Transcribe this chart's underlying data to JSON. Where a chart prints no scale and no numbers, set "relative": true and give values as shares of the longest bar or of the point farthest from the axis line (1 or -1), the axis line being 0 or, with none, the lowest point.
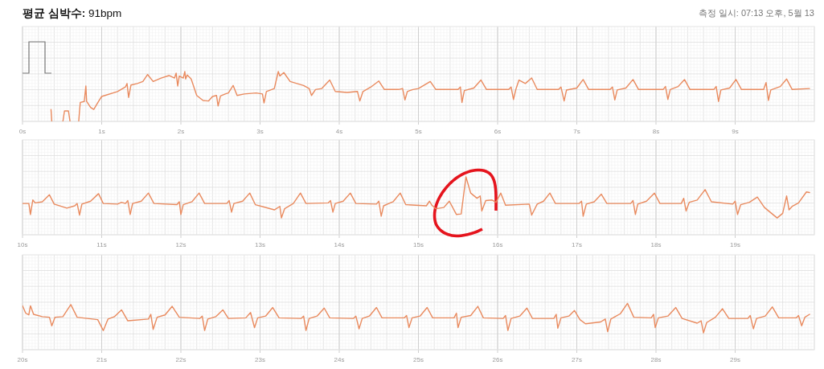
{
  "chart_data": [
    {
      "type": "line",
      "title": "**평균 심박수:** 91bpm",
      "subtitle": "측정 일시: 07:13 오후, 5월 13",
      "relative": true,
      "grid": true,
      "color": "#e98a5e",
      "xlim": [
        0,
        10
      ],
      "xticks": [
        {
          "value": 0,
          "label": "0s"
        },
        {
          "value": 1,
          "label": "1s"
        },
        {
          "value": 2,
          "label": "2s"
        },
        {
          "value": 3,
          "label": "3s"
        },
        {
          "value": 4,
          "label": "4s"
        },
        {
          "value": 5,
          "label": "5s"
        },
        {
          "value": 6,
          "label": "6s"
        },
        {
          "value": 7,
          "label": "7s"
        },
        {
          "value": 8,
          "label": "8s"
        },
        {
          "value": 9,
          "label": "9s"
        }
      ],
      "x": [
        0.36,
        0.37,
        0.44,
        0.51,
        0.53,
        0.58,
        0.6,
        0.65,
        0.71,
        0.72,
        0.73,
        0.78,
        0.8,
        0.81,
        0.86,
        0.9,
        0.96,
        1.0,
        1.2,
        1.3,
        1.32,
        1.34,
        1.37,
        1.45,
        1.52,
        1.58,
        1.65,
        1.75,
        1.85,
        1.92,
        1.94,
        1.96,
        1.98,
        2.03,
        2.05,
        2.06,
        2.08,
        2.13,
        2.2,
        2.28,
        2.35,
        2.4,
        2.45,
        2.47,
        2.5,
        2.56,
        2.6,
        2.66,
        2.71,
        2.8,
        2.95,
        3.03,
        3.05,
        3.08,
        3.18,
        3.23,
        3.25,
        3.3,
        3.38,
        3.55,
        3.62,
        3.65,
        3.7,
        3.78,
        3.88,
        3.95,
        4.1,
        4.23,
        4.26,
        4.3,
        4.4,
        4.5,
        4.57,
        4.75,
        4.8,
        4.83,
        4.86,
        4.93,
        5.0,
        5.15,
        5.22,
        5.5,
        5.53,
        5.55,
        5.58,
        5.7,
        5.79,
        5.86,
        6.14,
        6.17,
        6.2,
        6.23,
        6.27,
        6.35,
        6.43,
        6.5,
        6.77,
        6.8,
        6.84,
        6.87,
        7.0,
        7.08,
        7.15,
        7.42,
        7.45,
        7.48,
        7.51,
        7.62,
        7.71,
        7.78,
        8.09,
        8.12,
        8.15,
        8.18,
        8.28,
        8.36,
        8.43,
        8.73,
        8.76,
        8.79,
        8.82,
        8.93,
        9.01,
        9.08,
        9.36,
        9.39,
        9.42,
        9.45,
        9.57,
        9.65,
        9.72,
        9.94
      ],
      "values": [
        0.24,
        0,
        null,
        0,
        0.21,
        0.21,
        0,
        null,
        0,
        0.21,
        0.38,
        0.4,
        0.71,
        0.4,
        0.28,
        0.24,
        0.4,
        0.5,
        0.6,
        0.69,
        0.76,
        0.48,
        0.73,
        0.76,
        0.8,
        0.94,
        0.8,
        0.87,
        0.92,
        0.87,
        0.97,
        0.71,
        0.91,
        0.87,
        1,
        0.85,
        0.93,
        0.85,
        0.52,
        0.42,
        0.41,
        0.5,
        0.52,
        0.31,
        0.51,
        0.55,
        0.57,
        0.72,
        0.52,
        0.55,
        0.57,
        0.55,
        0.37,
        0.6,
        0.66,
        1,
        0.91,
        0.98,
        0.8,
        0.72,
        0.66,
        0.52,
        0.64,
        0.66,
        0.83,
        0.6,
        0.58,
        0.6,
        0.41,
        0.6,
        0.69,
        0.81,
        0.64,
        0.64,
        0.66,
        0.43,
        0.6,
        0.64,
        0.66,
        0.8,
        0.64,
        0.64,
        0.69,
        0.38,
        0.62,
        0.67,
        0.83,
        0.64,
        0.64,
        0.69,
        0.44,
        0.64,
        0.83,
        0.76,
        0.87,
        0.64,
        0.64,
        0.69,
        0.41,
        0.63,
        0.67,
        0.84,
        0.64,
        0.64,
        0.69,
        0.43,
        0.63,
        0.67,
        0.84,
        0.64,
        0.64,
        0.7,
        0.44,
        0.64,
        0.7,
        0.84,
        0.64,
        0.64,
        0.7,
        0.4,
        0.63,
        0.67,
        0.84,
        0.64,
        0.64,
        0.78,
        0.42,
        0.63,
        0.7,
        0.85,
        0.64,
        0.66
      ]
    },
    {
      "type": "line",
      "relative": true,
      "grid": true,
      "color": "#e98a5e",
      "xlim": [
        10,
        20
      ],
      "xticks": [
        {
          "value": 10,
          "label": "10s"
        },
        {
          "value": 11,
          "label": "11s"
        },
        {
          "value": 12,
          "label": "12s"
        },
        {
          "value": 13,
          "label": "13s"
        },
        {
          "value": 14,
          "label": "14s"
        },
        {
          "value": 15,
          "label": "15s"
        },
        {
          "value": 16,
          "label": "16s"
        },
        {
          "value": 17,
          "label": "17s"
        },
        {
          "value": 18,
          "label": "18s"
        },
        {
          "value": 19,
          "label": "19s"
        }
      ],
      "x": [
        10.0,
        10.08,
        10.1,
        10.13,
        10.16,
        10.25,
        10.34,
        10.4,
        10.56,
        10.66,
        10.69,
        10.72,
        10.75,
        10.86,
        10.96,
        11.02,
        11.2,
        11.25,
        11.3,
        11.33,
        11.36,
        11.39,
        11.5,
        11.59,
        11.66,
        11.95,
        11.98,
        12.0,
        12.03,
        12.14,
        12.23,
        12.3,
        12.58,
        12.61,
        12.64,
        12.67,
        12.78,
        12.87,
        12.94,
        13.18,
        13.25,
        13.27,
        13.31,
        13.42,
        13.51,
        13.58,
        13.86,
        13.89,
        13.92,
        13.95,
        14.05,
        14.14,
        14.21,
        14.47,
        14.5,
        14.53,
        14.56,
        14.68,
        14.77,
        14.84,
        15.1,
        15.14,
        15.17,
        15.22,
        15.32,
        15.39,
        15.48,
        15.54,
        15.6,
        15.66,
        15.74,
        15.78,
        15.8,
        15.85,
        15.93,
        15.98,
        16.04,
        16.1,
        16.4,
        16.43,
        16.5,
        16.58,
        16.66,
        16.73,
        17.03,
        17.06,
        17.08,
        17.12,
        17.22,
        17.31,
        17.38,
        17.68,
        17.71,
        17.74,
        17.77,
        17.88,
        17.98,
        18.05,
        18.32,
        18.35,
        18.38,
        18.42,
        18.52,
        18.62,
        18.7,
        18.97,
        19.0,
        19.03,
        19.07,
        19.18,
        19.28,
        19.37,
        19.53,
        19.6,
        19.65,
        19.68,
        19.72,
        19.8,
        19.9,
        19.94
      ],
      "values": [
        0.54,
        0.54,
        0.35,
        0.6,
        0.55,
        0.57,
        0.69,
        0.53,
        0.46,
        0.5,
        0.54,
        0.34,
        0.53,
        0.58,
        0.71,
        0.54,
        0.53,
        0.56,
        0.54,
        0.59,
        0.35,
        0.54,
        0.58,
        0.72,
        0.54,
        0.52,
        0.57,
        0.35,
        0.52,
        0.57,
        0.72,
        0.54,
        0.54,
        0.59,
        0.39,
        0.54,
        0.58,
        0.72,
        0.52,
        0.43,
        0.49,
        0.29,
        0.45,
        0.54,
        0.72,
        0.54,
        0.55,
        0.59,
        0.39,
        0.54,
        0.58,
        0.72,
        0.54,
        0.53,
        0.58,
        0.32,
        0.5,
        0.57,
        0.72,
        0.52,
        0.5,
        0.58,
        0.51,
        0.45,
        0.47,
        0.58,
        0.35,
        0.36,
        1.0,
        0.72,
        0.63,
        0.67,
        0.41,
        0.59,
        0.6,
        0.56,
        0.72,
        0.51,
        0.53,
        0.34,
        0.53,
        0.58,
        0.72,
        0.54,
        0.54,
        0.58,
        0.32,
        0.53,
        0.57,
        0.7,
        0.54,
        0.54,
        0.59,
        0.35,
        0.53,
        0.58,
        0.72,
        0.54,
        0.54,
        0.63,
        0.41,
        0.56,
        0.6,
        0.78,
        0.57,
        0.53,
        0.58,
        0.35,
        0.52,
        0.56,
        0.65,
        0.47,
        0.29,
        0.37,
        0.67,
        0.43,
        0.49,
        0.55,
        0.74,
        0.73
      ]
    },
    {
      "type": "line",
      "relative": true,
      "grid": true,
      "color": "#e98a5e",
      "xlim": [
        20,
        30
      ],
      "xticks": [
        {
          "value": 20,
          "label": "20s"
        },
        {
          "value": 21,
          "label": "21s"
        },
        {
          "value": 22,
          "label": "22s"
        },
        {
          "value": 23,
          "label": "23s"
        },
        {
          "value": 24,
          "label": "24s"
        },
        {
          "value": 25,
          "label": "25s"
        },
        {
          "value": 26,
          "label": "26s"
        },
        {
          "value": 27,
          "label": "27s"
        },
        {
          "value": 28,
          "label": "28s"
        },
        {
          "value": 29,
          "label": "29s"
        }
      ],
      "x": [
        20.0,
        20.04,
        20.08,
        20.1,
        20.14,
        20.25,
        20.34,
        20.37,
        20.41,
        20.51,
        20.61,
        20.69,
        20.95,
        21.02,
        21.08,
        21.16,
        21.25,
        21.33,
        21.59,
        21.62,
        21.65,
        21.7,
        21.8,
        21.89,
        21.98,
        22.24,
        22.27,
        22.3,
        22.34,
        22.44,
        22.53,
        22.6,
        22.82,
        22.88,
        22.93,
        22.97,
        23.07,
        23.16,
        23.24,
        23.52,
        23.55,
        23.58,
        23.62,
        23.72,
        23.81,
        23.88,
        24.18,
        24.21,
        24.25,
        24.29,
        24.38,
        24.47,
        24.54,
        24.82,
        24.85,
        24.88,
        24.92,
        25.02,
        25.11,
        25.18,
        25.45,
        25.48,
        25.5,
        25.54,
        25.66,
        25.75,
        25.82,
        26.07,
        26.1,
        26.13,
        26.17,
        26.28,
        26.37,
        26.44,
        26.71,
        26.74,
        26.76,
        26.8,
        26.9,
        26.97,
        27.04,
        27.11,
        27.3,
        27.36,
        27.39,
        27.43,
        27.55,
        27.64,
        27.72,
        27.94,
        27.97,
        27.99,
        28.03,
        28.15,
        28.25,
        28.33,
        28.52,
        28.57,
        28.6,
        28.64,
        28.75,
        28.84,
        28.92,
        29.16,
        29.19,
        29.23,
        29.27,
        29.38,
        29.47,
        29.55,
        29.77,
        29.8,
        29.84,
        29.88,
        29.94
      ],
      "values": [
        0.92,
        0.67,
        0.61,
        0.92,
        0.63,
        0.55,
        0.53,
        0.24,
        0.53,
        0.55,
        0.96,
        0.53,
        0.45,
        0.08,
        0.47,
        0.55,
        0.78,
        0.41,
        0.47,
        0.63,
        0.12,
        0.53,
        0.61,
        0.9,
        0.53,
        0.49,
        0.57,
        0.08,
        0.47,
        0.55,
        0.78,
        0.49,
        0.51,
        0.69,
        0.18,
        0.51,
        0.57,
        0.86,
        0.51,
        0.49,
        0.57,
        0.08,
        0.49,
        0.57,
        0.84,
        0.51,
        0.49,
        0.57,
        0.14,
        0.49,
        0.57,
        0.86,
        0.51,
        0.51,
        0.59,
        0.18,
        0.51,
        0.57,
        0.86,
        0.51,
        0.51,
        0.67,
        0.18,
        0.53,
        0.59,
        0.9,
        0.51,
        0.49,
        0.59,
        0.08,
        0.49,
        0.57,
        0.84,
        0.49,
        0.49,
        0.63,
        0.16,
        0.51,
        0.57,
        0.76,
        0.45,
        0.31,
        0.37,
        0.47,
        0.04,
        0.47,
        0.65,
        1,
        0.53,
        0.51,
        0.63,
        0.18,
        0.51,
        0.57,
        0.86,
        0.49,
        0.33,
        0.41,
        0,
        0.35,
        0.53,
        0.82,
        0.49,
        0.49,
        0.59,
        0.14,
        0.49,
        0.57,
        0.88,
        0.51,
        0.51,
        0.59,
        0.24,
        0.53,
        0.63
      ]
    }
  ]
}
